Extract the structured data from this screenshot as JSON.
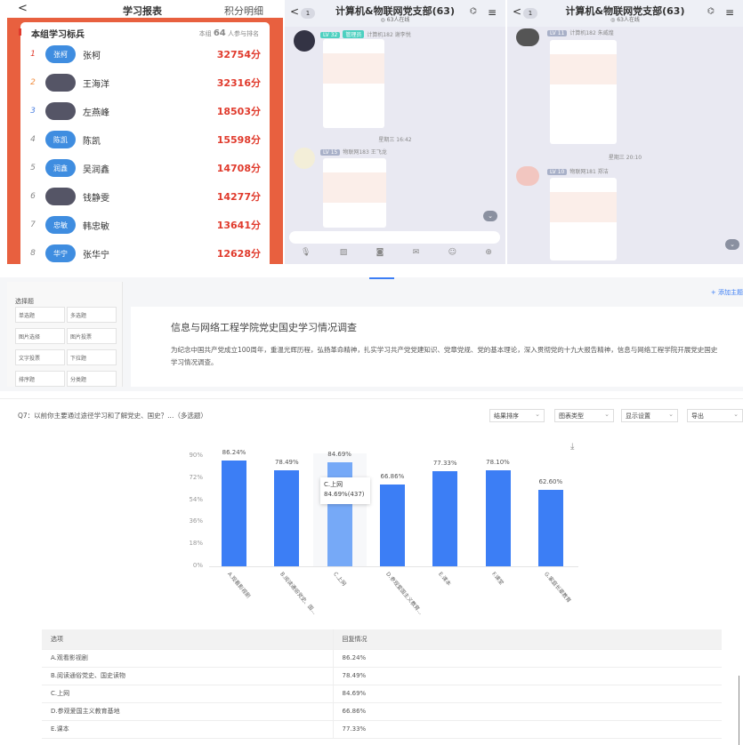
{
  "report": {
    "back": "<",
    "title": "学习报表",
    "right_link": "积分明细",
    "section": "本组学习标兵",
    "participants_prefix": "本组",
    "participants": "64",
    "participants_suffix": "人参与排名",
    "rows": [
      {
        "rank": "1",
        "avatar": "张柯",
        "name": "张柯",
        "score": "32754分",
        "photo": false
      },
      {
        "rank": "2",
        "avatar": "",
        "name": "王海洋",
        "score": "32316分",
        "photo": true
      },
      {
        "rank": "3",
        "avatar": "",
        "name": "左燕峰",
        "score": "18503分",
        "photo": true
      },
      {
        "rank": "4",
        "avatar": "陈凯",
        "name": "陈凯",
        "score": "15598分",
        "photo": false
      },
      {
        "rank": "5",
        "avatar": "润鑫",
        "name": "吴润鑫",
        "score": "14708分",
        "photo": false
      },
      {
        "rank": "6",
        "avatar": "",
        "name": "钱静雯",
        "score": "14277分",
        "photo": true
      },
      {
        "rank": "7",
        "avatar": "忠敏",
        "name": "韩忠敏",
        "score": "13641分",
        "photo": false
      },
      {
        "rank": "8",
        "avatar": "华宁",
        "name": "张华宁",
        "score": "12628分",
        "photo": false
      }
    ]
  },
  "chat1": {
    "title": "计算机&物联网党支部(63)",
    "online": "◎ 63人在线",
    "unread": "1",
    "messages": [
      {
        "level": "LV 32",
        "role": "管理员",
        "sender": "计算机182 谢李悦"
      },
      {
        "level": "LV 15",
        "sender": "物联网183 王飞龙"
      }
    ],
    "time": "星期三 16:42"
  },
  "chat2": {
    "title": "计算机&物联网党支部(63)",
    "online": "◎ 63人在线",
    "unread": "1",
    "messages": [
      {
        "level": "LV 11",
        "sender": "计算机182 朱威煌"
      },
      {
        "level": "LV 10",
        "sender": "物联网181 郑洁"
      }
    ],
    "time": "星期三 20:10"
  },
  "editor": {
    "group": "选择题",
    "types": [
      "单选题",
      "多选题",
      "图片选择",
      "图片投票",
      "文字投票",
      "下拉题",
      "排序题",
      "分类题"
    ],
    "add_link": "+ 添加主题",
    "survey_title": "信息与网络工程学院党史国史学习情况调查",
    "survey_desc": "为纪念中国共产党成立100周年，重温光辉历程，弘扬革命精神，扎实学习共产党党建知识、党章党规、党的基本理论，深入贯彻党的十九大报告精神，信息与网络工程学院开展党史国史学习情况调查。"
  },
  "question": {
    "text": "Q7：以前你主要通过途径学习和了解党史、国史？...（多选题）",
    "controls": [
      "结果排序",
      "图表类型",
      "显示设置",
      "导出"
    ]
  },
  "chart_data": {
    "type": "bar",
    "categories": [
      "A.观看影视剧",
      "B.阅读通俗党史、国...",
      "C.上网",
      "D.参观爱国主义教育...",
      "E.课本",
      "F.课堂",
      "G.家庭长辈教育"
    ],
    "values": [
      86.24,
      78.49,
      84.69,
      66.86,
      77.33,
      78.1,
      62.6
    ],
    "labels": [
      "86.24%",
      "78.49%",
      "84.69%",
      "66.86%",
      "77.33%",
      "78.10%",
      "62.60%"
    ],
    "yticks": [
      "0%",
      "18%",
      "36%",
      "54%",
      "72%",
      "90%"
    ],
    "ylim": [
      0,
      90
    ],
    "highlight": 2,
    "tooltip": {
      "title": "C.上网",
      "value": "84.69%(437)"
    },
    "colors": {
      "bar": "#3c7ef5",
      "highlight": "#76a9f7"
    }
  },
  "table": {
    "headers": [
      "选项",
      "回复情况"
    ],
    "rows": [
      [
        "A.观看影视剧",
        "86.24%"
      ],
      [
        "B.阅读通俗党史、国史读物",
        "78.49%"
      ],
      [
        "C.上网",
        "84.69%"
      ],
      [
        "D.参观爱国主义教育基地",
        "66.86%"
      ],
      [
        "E.课本",
        "77.33%"
      ]
    ]
  }
}
